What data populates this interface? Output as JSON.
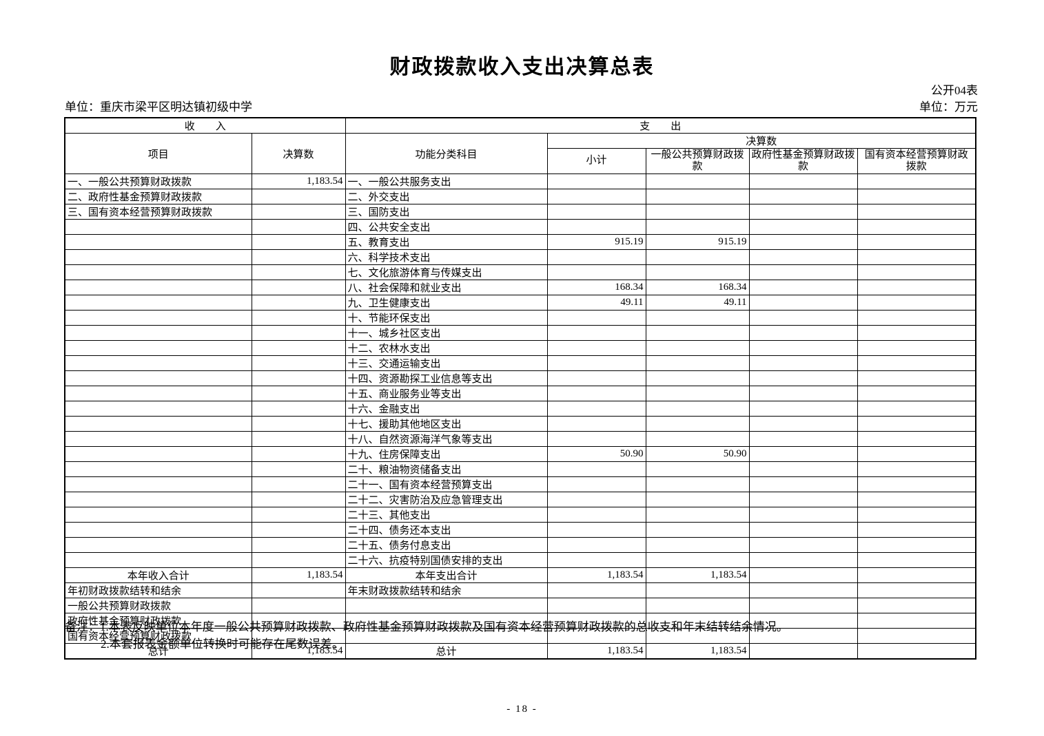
{
  "page": {
    "title": "财政拨款收入支出决算总表",
    "doc_label": "公开04表",
    "unit_left": "单位：重庆市梁平区明达镇初级中学",
    "unit_right": "单位：万元",
    "page_number": "- 18 -"
  },
  "notes": {
    "label": "备注：",
    "line1": "1.本表反映单位本年度一般公共预算财政拨款、政府性基金预算财政拨款及国有资本经营预算财政拨款的总收支和年末结转结余情况。",
    "line2": "2.本套报表金额单位转换时可能存在尾数误差。"
  },
  "table": {
    "header": {
      "income_section": "收　　入",
      "expense_section": "支　　出",
      "item": "项目",
      "income_final": "决算数",
      "func_category": "功能分类科目",
      "expense_final": "决算数",
      "subtotal": "小计",
      "general_budget": "一般公共预算财政拨款",
      "govt_fund": "政府性基金预算财政拨款",
      "state_capital": "国有资本经营预算财政拨款"
    },
    "rows": [
      {
        "income_label": "一、一般公共预算财政拨款",
        "income_value": "1,183.54",
        "expense_label": "一、一般公共服务支出"
      },
      {
        "income_label": "二、政府性基金预算财政拨款",
        "expense_label": "二、外交支出"
      },
      {
        "income_label": "三、国有资本经营预算财政拨款",
        "expense_label": "三、国防支出"
      },
      {
        "expense_label": "四、公共安全支出"
      },
      {
        "expense_label": "五、教育支出",
        "subtotal": "915.19",
        "general_budget": "915.19"
      },
      {
        "expense_label": "六、科学技术支出"
      },
      {
        "expense_label": "七、文化旅游体育与传媒支出"
      },
      {
        "expense_label": "八、社会保障和就业支出",
        "subtotal": "168.34",
        "general_budget": "168.34"
      },
      {
        "expense_label": "九、卫生健康支出",
        "subtotal": "49.11",
        "general_budget": "49.11"
      },
      {
        "expense_label": "十、节能环保支出"
      },
      {
        "expense_label": "十一、城乡社区支出"
      },
      {
        "expense_label": "十二、农林水支出"
      },
      {
        "expense_label": "十三、交通运输支出"
      },
      {
        "expense_label": "十四、资源勘探工业信息等支出"
      },
      {
        "expense_label": "十五、商业服务业等支出"
      },
      {
        "expense_label": "十六、金融支出"
      },
      {
        "expense_label": "十七、援助其他地区支出"
      },
      {
        "expense_label": "十八、自然资源海洋气象等支出"
      },
      {
        "expense_label": "十九、住房保障支出",
        "subtotal": "50.90",
        "general_budget": "50.90"
      },
      {
        "expense_label": "二十、粮油物资储备支出"
      },
      {
        "expense_label": "二十一、国有资本经营预算支出"
      },
      {
        "expense_label": "二十二、灾害防治及应急管理支出"
      },
      {
        "expense_label": "二十三、其他支出"
      },
      {
        "expense_label": "二十四、债务还本支出"
      },
      {
        "expense_label": "二十五、债务付息支出"
      },
      {
        "expense_label": "二十六、抗疫特别国债安排的支出"
      },
      {
        "income_label": "本年收入合计",
        "income_align": "center",
        "income_value": "1,183.54",
        "expense_label": "本年支出合计",
        "expense_align": "center",
        "subtotal": "1,183.54",
        "general_budget": "1,183.54"
      },
      {
        "income_label": "年初财政拨款结转和结余",
        "expense_label": "年末财政拨款结转和结余"
      },
      {
        "income_label": "一般公共预算财政拨款",
        "income_indent": true
      },
      {
        "income_label": "政府性基金预算财政拨款",
        "income_indent": true
      },
      {
        "income_label": "国有资本经营预算财政拨款",
        "income_indent": true
      },
      {
        "income_label": "总计",
        "income_align": "center",
        "income_value": "1,183.54",
        "expense_label": "总计",
        "expense_align": "center",
        "subtotal": "1,183.54",
        "general_budget": "1,183.54"
      }
    ]
  }
}
